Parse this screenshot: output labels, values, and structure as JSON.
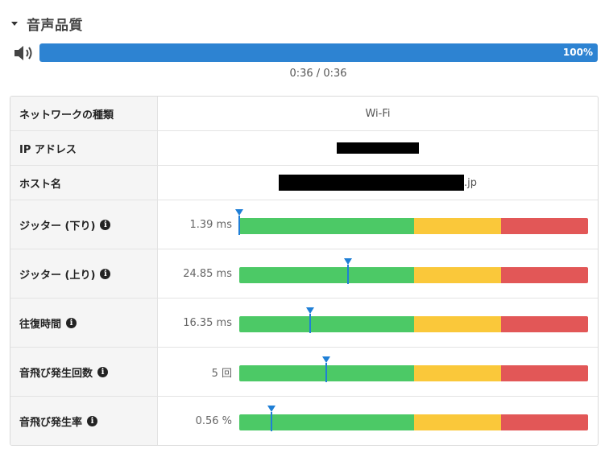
{
  "section": {
    "title": "音声品質"
  },
  "player": {
    "progress_label": "100%",
    "progress": 1.0,
    "time": "0:36 / 0:36"
  },
  "info_rows": [
    {
      "label": "ネットワークの種類",
      "value": "Wi-Fi"
    },
    {
      "label": "IP アドレス",
      "value": ""
    },
    {
      "label": "ホスト名",
      "suffix": ".jp"
    }
  ],
  "metrics": [
    {
      "label": "ジッター (下り)",
      "value": "1.39 ms",
      "position": 0.0
    },
    {
      "label": "ジッター (上り)",
      "value": "24.85 ms",
      "position": 0.312
    },
    {
      "label": "往復時間",
      "value": "16.35 ms",
      "position": 0.203
    },
    {
      "label": "音飛び発生回数",
      "value": "5 回",
      "position": 0.249
    },
    {
      "label": "音飛び発生率",
      "value": "0.56 %",
      "position": 0.092
    }
  ],
  "colors": {
    "progress": "#2d83d2",
    "good": "#4cc966",
    "warn": "#fac83a",
    "bad": "#e25757",
    "marker": "#1f7fd6"
  }
}
